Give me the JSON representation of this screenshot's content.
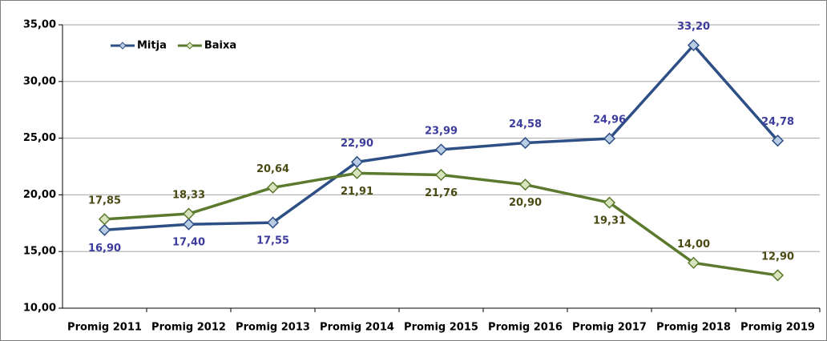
{
  "chart_data": {
    "type": "line",
    "categories": [
      "Promig 2011",
      "Promig 2012",
      "Promig 2013",
      "Promig 2014",
      "Promig 2015",
      "Promig 2016",
      "Promig 2017",
      "Promig 2018",
      "Promig 2019"
    ],
    "series": [
      {
        "name": "Mitja",
        "color": "#2e4f85",
        "marker_color": "#b8cce4",
        "label_color": "#3c3c9c",
        "values": [
          16.9,
          17.4,
          17.55,
          22.9,
          23.99,
          24.58,
          24.96,
          33.2,
          24.78
        ],
        "value_labels": [
          "16,90",
          "17,40",
          "17,55",
          "22,90",
          "23,99",
          "24,58",
          "24,96",
          "33,20",
          "24,78"
        ]
      },
      {
        "name": "Baixa",
        "color": "#5b7a2e",
        "marker_color": "#d7e4bd",
        "label_color": "#4a4a14",
        "values": [
          17.85,
          18.33,
          20.64,
          21.91,
          21.76,
          20.9,
          19.31,
          14.0,
          12.9
        ],
        "value_labels": [
          "17,85",
          "18,33",
          "20,64",
          "21,91",
          "21,76",
          "20,90",
          "19,31",
          "14,00",
          "12,90"
        ]
      }
    ],
    "ylim": [
      10,
      35
    ],
    "yticks": [
      {
        "value": 10,
        "label": "10,00"
      },
      {
        "value": 15,
        "label": "15,00"
      },
      {
        "value": 20,
        "label": "20,00"
      },
      {
        "value": 25,
        "label": "25,00"
      },
      {
        "value": 30,
        "label": "30,00"
      },
      {
        "value": 35,
        "label": "35,00"
      }
    ],
    "grid": true,
    "legend": "upper left"
  }
}
